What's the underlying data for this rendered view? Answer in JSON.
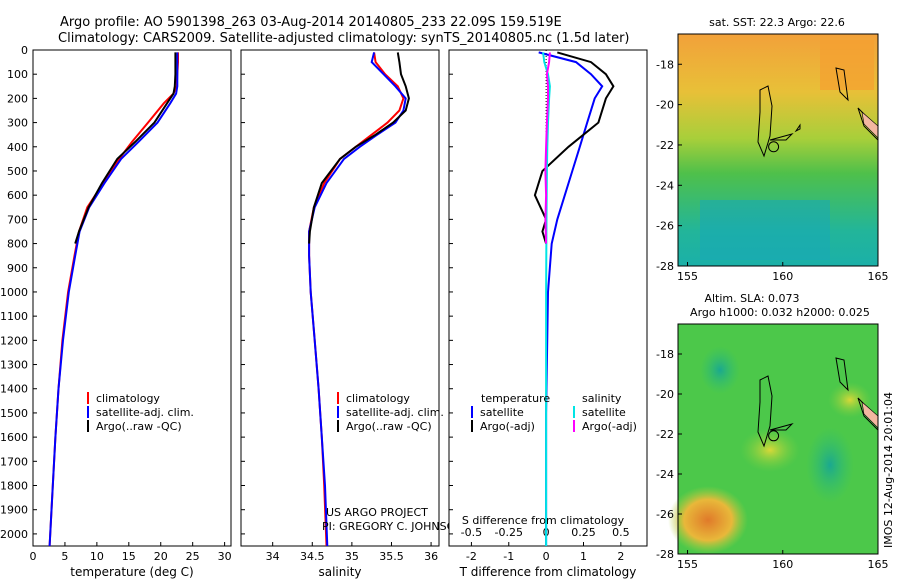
{
  "header": {
    "line1": "Argo profile: AO 5901398_263 03-Aug-2014 20140805_233 22.09S 159.519E",
    "line2": "Climatology: CARS2009. Satellite-adjusted climatology: synTS_20140805.nc (1.5d later)"
  },
  "project": {
    "line1": "US ARGO PROJECT",
    "line2": "PI: GREGORY C. JOHNSON"
  },
  "colors": {
    "climatology": "#ff0000",
    "satellite": "#0000ff",
    "argo": "#000000",
    "sal_satellite": "#00e5e5",
    "sal_argo": "#ff00ff"
  },
  "chart_data": [
    {
      "type": "line",
      "id": "temperature",
      "xlabel": "temperature (deg C)",
      "xlim": [
        0,
        31
      ],
      "xticks": [
        0,
        5,
        10,
        15,
        20,
        25,
        30
      ],
      "ylim": [
        2050,
        0
      ],
      "yticks": [
        0,
        100,
        200,
        300,
        400,
        500,
        600,
        700,
        800,
        900,
        1000,
        1100,
        1200,
        1300,
        1400,
        1500,
        1600,
        1700,
        1800,
        1900,
        2000
      ],
      "legend": [
        "climatology",
        "satellite-adj. clim.",
        "Argo(..raw -QC)"
      ],
      "series": [
        {
          "name": "climatology",
          "color": "#ff0000",
          "points": [
            [
              22.7,
              10
            ],
            [
              22.7,
              50
            ],
            [
              22.6,
              100
            ],
            [
              22.5,
              150
            ],
            [
              22,
              180
            ],
            [
              20.5,
              220
            ],
            [
              18,
              300
            ],
            [
              15.5,
              380
            ],
            [
              13.5,
              450
            ],
            [
              11,
              550
            ],
            [
              8.5,
              650
            ],
            [
              7.2,
              750
            ],
            [
              6.5,
              850
            ],
            [
              5.5,
              1000
            ],
            [
              4.6,
              1200
            ],
            [
              4,
              1400
            ],
            [
              3.5,
              1600
            ],
            [
              3.1,
              1800
            ],
            [
              2.6,
              2050
            ]
          ]
        },
        {
          "name": "satellite-adj. clim.",
          "color": "#0000ff",
          "points": [
            [
              22.6,
              10
            ],
            [
              22.6,
              50
            ],
            [
              22.6,
              100
            ],
            [
              22.6,
              150
            ],
            [
              22.4,
              180
            ],
            [
              21.5,
              220
            ],
            [
              19.5,
              300
            ],
            [
              16.5,
              380
            ],
            [
              13.8,
              450
            ],
            [
              11.2,
              550
            ],
            [
              8.8,
              650
            ],
            [
              7.3,
              750
            ],
            [
              6.6,
              850
            ],
            [
              5.6,
              1000
            ],
            [
              4.7,
              1200
            ],
            [
              4,
              1400
            ],
            [
              3.5,
              1600
            ],
            [
              3.1,
              1800
            ],
            [
              2.6,
              2050
            ]
          ]
        },
        {
          "name": "Argo(..raw -QC)",
          "color": "#000000",
          "points": [
            [
              22.3,
              10
            ],
            [
              22.3,
              50
            ],
            [
              22.3,
              100
            ],
            [
              22.2,
              150
            ],
            [
              22,
              180
            ],
            [
              21,
              220
            ],
            [
              19,
              300
            ],
            [
              16,
              380
            ],
            [
              13.2,
              450
            ],
            [
              10.8,
              550
            ],
            [
              8.7,
              650
            ],
            [
              7.2,
              750
            ],
            [
              6.6,
              800
            ]
          ]
        }
      ]
    },
    {
      "type": "line",
      "id": "salinity",
      "xlabel": "salinity",
      "xlim": [
        33.6,
        36.1
      ],
      "xticks": [
        34,
        34.5,
        35,
        35.5,
        36
      ],
      "ylim": [
        2050,
        0
      ],
      "legend": [
        "climatology",
        "satellite-adj. clim.",
        "Argo(..raw -QC)"
      ],
      "series": [
        {
          "name": "climatology",
          "color": "#ff0000",
          "points": [
            [
              35.28,
              10
            ],
            [
              35.3,
              50
            ],
            [
              35.42,
              100
            ],
            [
              35.58,
              150
            ],
            [
              35.65,
              200
            ],
            [
              35.6,
              250
            ],
            [
              35.45,
              300
            ],
            [
              35.25,
              350
            ],
            [
              35.05,
              400
            ],
            [
              34.85,
              450
            ],
            [
              34.65,
              550
            ],
            [
              34.52,
              650
            ],
            [
              34.46,
              750
            ],
            [
              34.46,
              850
            ],
            [
              34.48,
              1000
            ],
            [
              34.53,
              1200
            ],
            [
              34.58,
              1400
            ],
            [
              34.62,
              1600
            ],
            [
              34.65,
              1800
            ],
            [
              34.68,
              2050
            ]
          ]
        },
        {
          "name": "satellite-adj. clim.",
          "color": "#0000ff",
          "points": [
            [
              35.28,
              10
            ],
            [
              35.25,
              50
            ],
            [
              35.4,
              100
            ],
            [
              35.55,
              150
            ],
            [
              35.68,
              200
            ],
            [
              35.65,
              250
            ],
            [
              35.55,
              300
            ],
            [
              35.32,
              350
            ],
            [
              35.1,
              400
            ],
            [
              34.9,
              450
            ],
            [
              34.68,
              550
            ],
            [
              34.53,
              650
            ],
            [
              34.46,
              750
            ],
            [
              34.46,
              850
            ],
            [
              34.48,
              1000
            ],
            [
              34.53,
              1200
            ],
            [
              34.58,
              1400
            ],
            [
              34.62,
              1600
            ],
            [
              34.66,
              1800
            ],
            [
              34.69,
              2050
            ]
          ]
        },
        {
          "name": "Argo(..raw -QC)",
          "color": "#000000",
          "points": [
            [
              35.58,
              10
            ],
            [
              35.6,
              50
            ],
            [
              35.62,
              100
            ],
            [
              35.68,
              150
            ],
            [
              35.72,
              200
            ],
            [
              35.68,
              250
            ],
            [
              35.52,
              300
            ],
            [
              35.3,
              350
            ],
            [
              35.05,
              400
            ],
            [
              34.85,
              450
            ],
            [
              34.62,
              550
            ],
            [
              34.52,
              650
            ],
            [
              34.47,
              750
            ],
            [
              34.46,
              800
            ]
          ]
        }
      ]
    },
    {
      "type": "line",
      "id": "difference",
      "xlabel": "T difference from climatology",
      "xlabel_top": "S difference from climatology",
      "xlim": [
        -2.6,
        2.7
      ],
      "xticks": [
        -2,
        -1,
        0,
        1,
        2
      ],
      "top_tick_labels": [
        "-0.5",
        "-0.25",
        "0",
        "0.25",
        "0.5"
      ],
      "top_ticks": [
        -0.5,
        -0.25,
        0,
        0.25,
        0.5
      ],
      "ylim": [
        2050,
        0
      ],
      "legend_temperature_title": "temperature",
      "legend_salinity_title": "salinity",
      "legend_satellite": "satellite",
      "legend_argo": "Argo(-adj)",
      "series": [
        {
          "name": "temperature satellite",
          "color": "#0000ff",
          "points": [
            [
              -0.2,
              10
            ],
            [
              0.8,
              50
            ],
            [
              1.2,
              100
            ],
            [
              1.5,
              150
            ],
            [
              1.3,
              200
            ],
            [
              1.1,
              300
            ],
            [
              0.9,
              400
            ],
            [
              0.7,
              500
            ],
            [
              0.5,
              600
            ],
            [
              0.3,
              700
            ],
            [
              0.15,
              800
            ],
            [
              0.05,
              1000
            ],
            [
              0,
              1500
            ],
            [
              0,
              2050
            ]
          ]
        },
        {
          "name": "temperature Argo(-adj)",
          "color": "#000000",
          "points": [
            [
              0.3,
              10
            ],
            [
              1.2,
              50
            ],
            [
              1.6,
              100
            ],
            [
              1.8,
              150
            ],
            [
              1.6,
              200
            ],
            [
              1.4,
              300
            ],
            [
              0.6,
              400
            ],
            [
              -0.1,
              500
            ],
            [
              -0.3,
              600
            ],
            [
              0,
              700
            ],
            [
              -0.1,
              750
            ],
            [
              0,
              800
            ]
          ]
        },
        {
          "name": "salinity satellite",
          "color": "#00e5e5",
          "points": [
            [
              -0.08,
              10
            ],
            [
              -0.05,
              50
            ],
            [
              0.05,
              100
            ],
            [
              0.1,
              150
            ],
            [
              0.08,
              200
            ],
            [
              0.05,
              300
            ],
            [
              0.03,
              400
            ],
            [
              0.02,
              500
            ],
            [
              0.01,
              700
            ],
            [
              0,
              1000
            ],
            [
              0,
              2050
            ]
          ]
        },
        {
          "name": "salinity Argo(-adj)",
          "color": "#ff00ff",
          "points": [
            [
              0.1,
              10
            ],
            [
              0.08,
              50
            ],
            [
              0.02,
              100
            ],
            [
              0.05,
              150
            ],
            [
              0.05,
              200
            ],
            [
              0.02,
              300
            ],
            [
              0,
              400
            ],
            [
              -0.02,
              500
            ],
            [
              0,
              600
            ],
            [
              -0.02,
              700
            ],
            [
              0,
              800
            ]
          ]
        }
      ]
    },
    {
      "type": "heatmap",
      "id": "sst-map",
      "title": "sat. SST: 22.3 Argo: 22.6",
      "xlim": [
        154.5,
        165
      ],
      "ylim": [
        -28,
        -16.5
      ],
      "xticks": [
        155,
        160,
        165
      ],
      "yticks": [
        -18,
        -20,
        -22,
        -24,
        -26,
        -28
      ],
      "float_position": [
        159.519,
        -22.09
      ]
    },
    {
      "type": "heatmap",
      "id": "sla-map",
      "title_line1": "Altim. SLA: 0.073",
      "title_line2": "Argo h1000: 0.032 h2000: 0.025",
      "xlim": [
        154.5,
        165
      ],
      "ylim": [
        -28,
        -16.5
      ],
      "xticks": [
        155,
        160,
        165
      ],
      "yticks": [
        -18,
        -20,
        -22,
        -24,
        -26,
        -28
      ],
      "float_position": [
        159.519,
        -22.09
      ]
    }
  ],
  "footer": {
    "credit": "IMOS 12-Aug-2014 20:01:04"
  }
}
